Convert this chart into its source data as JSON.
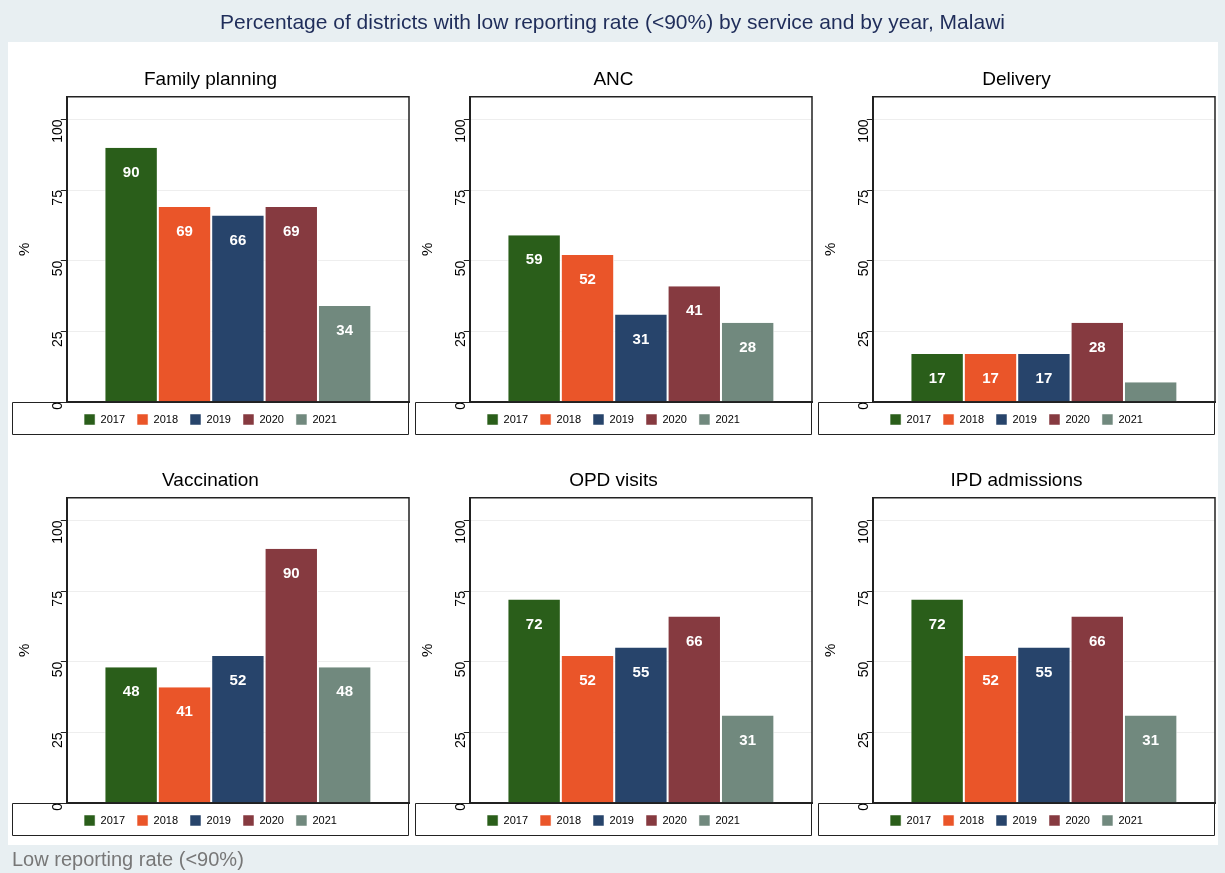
{
  "chart_data": [
    {
      "type": "other",
      "title": "Percentage of districts with low reporting rate (<90%) by service and by year, Malawi",
      "annotations": [
        "Low reporting rate (<90%)"
      ]
    },
    {
      "type": "bar",
      "title": "Family planning",
      "ylabel": "%",
      "categories": [
        null
      ],
      "ylim": [
        0,
        108
      ],
      "yticks": [
        0,
        25,
        50,
        75,
        100
      ],
      "grid": "y",
      "legend": "bottom",
      "tick_labels": "y",
      "data_labels": true,
      "series": [
        {
          "name": "2017",
          "color": "#2a5e1a",
          "values": [
            90
          ]
        },
        {
          "name": "2018",
          "color": "#ea5529",
          "values": [
            69
          ]
        },
        {
          "name": "2019",
          "color": "#27446b",
          "values": [
            66
          ]
        },
        {
          "name": "2020",
          "color": "#863a40",
          "values": [
            69
          ]
        },
        {
          "name": "2021",
          "color": "#71897e",
          "values": [
            34
          ]
        }
      ]
    },
    {
      "type": "bar",
      "title": "ANC",
      "ylabel": "%",
      "categories": [
        null
      ],
      "ylim": [
        0,
        108
      ],
      "yticks": [
        0,
        25,
        50,
        75,
        100
      ],
      "grid": "y",
      "legend": "bottom",
      "tick_labels": "y",
      "data_labels": true,
      "series": [
        {
          "name": "2017",
          "color": "#2a5e1a",
          "values": [
            59
          ]
        },
        {
          "name": "2018",
          "color": "#ea5529",
          "values": [
            52
          ]
        },
        {
          "name": "2019",
          "color": "#27446b",
          "values": [
            31
          ]
        },
        {
          "name": "2020",
          "color": "#863a40",
          "values": [
            41
          ]
        },
        {
          "name": "2021",
          "color": "#71897e",
          "values": [
            28
          ]
        }
      ]
    },
    {
      "type": "bar",
      "title": "Delivery",
      "ylabel": "%",
      "categories": [
        null
      ],
      "ylim": [
        0,
        108
      ],
      "yticks": [
        0,
        25,
        50,
        75,
        100
      ],
      "grid": "y",
      "legend": "bottom",
      "tick_labels": "y",
      "series": [
        {
          "name": "2017",
          "color": "#2a5e1a",
          "values": [
            17
          ],
          "value_labels": [
            "17"
          ]
        },
        {
          "name": "2018",
          "color": "#ea5529",
          "values": [
            17
          ],
          "value_labels": [
            "17"
          ]
        },
        {
          "name": "2019",
          "color": "#27446b",
          "values": [
            17
          ],
          "value_labels": [
            "17"
          ]
        },
        {
          "name": "2020",
          "color": "#863a40",
          "values": [
            28
          ],
          "value_labels": [
            "28"
          ]
        },
        {
          "name": "2021",
          "color": "#71897e",
          "values": [
            7
          ],
          "value_labels": [
            null
          ]
        }
      ]
    },
    {
      "type": "bar",
      "title": "Vaccination",
      "ylabel": "%",
      "categories": [
        null
      ],
      "ylim": [
        0,
        108
      ],
      "yticks": [
        0,
        25,
        50,
        75,
        100
      ],
      "grid": "y",
      "legend": "bottom",
      "tick_labels": "y",
      "data_labels": true,
      "series": [
        {
          "name": "2017",
          "color": "#2a5e1a",
          "values": [
            48
          ]
        },
        {
          "name": "2018",
          "color": "#ea5529",
          "values": [
            41
          ]
        },
        {
          "name": "2019",
          "color": "#27446b",
          "values": [
            52
          ]
        },
        {
          "name": "2020",
          "color": "#863a40",
          "values": [
            90
          ]
        },
        {
          "name": "2021",
          "color": "#71897e",
          "values": [
            48
          ]
        }
      ]
    },
    {
      "type": "bar",
      "title": "OPD visits",
      "ylabel": "%",
      "categories": [
        null
      ],
      "ylim": [
        0,
        108
      ],
      "yticks": [
        0,
        25,
        50,
        75,
        100
      ],
      "grid": "y",
      "legend": "bottom",
      "tick_labels": "y",
      "data_labels": true,
      "series": [
        {
          "name": "2017",
          "color": "#2a5e1a",
          "values": [
            72
          ]
        },
        {
          "name": "2018",
          "color": "#ea5529",
          "values": [
            52
          ]
        },
        {
          "name": "2019",
          "color": "#27446b",
          "values": [
            55
          ]
        },
        {
          "name": "2020",
          "color": "#863a40",
          "values": [
            66
          ]
        },
        {
          "name": "2021",
          "color": "#71897e",
          "values": [
            31
          ]
        }
      ]
    },
    {
      "type": "bar",
      "title": "IPD admissions",
      "ylabel": "%",
      "categories": [
        null
      ],
      "ylim": [
        0,
        108
      ],
      "yticks": [
        0,
        25,
        50,
        75,
        100
      ],
      "grid": "y",
      "legend": "bottom",
      "tick_labels": "y",
      "data_labels": true,
      "series": [
        {
          "name": "2017",
          "color": "#2a5e1a",
          "values": [
            72
          ]
        },
        {
          "name": "2018",
          "color": "#ea5529",
          "values": [
            52
          ]
        },
        {
          "name": "2019",
          "color": "#27446b",
          "values": [
            55
          ]
        },
        {
          "name": "2020",
          "color": "#863a40",
          "values": [
            66
          ]
        },
        {
          "name": "2021",
          "color": "#71897e",
          "values": [
            31
          ]
        }
      ]
    }
  ]
}
